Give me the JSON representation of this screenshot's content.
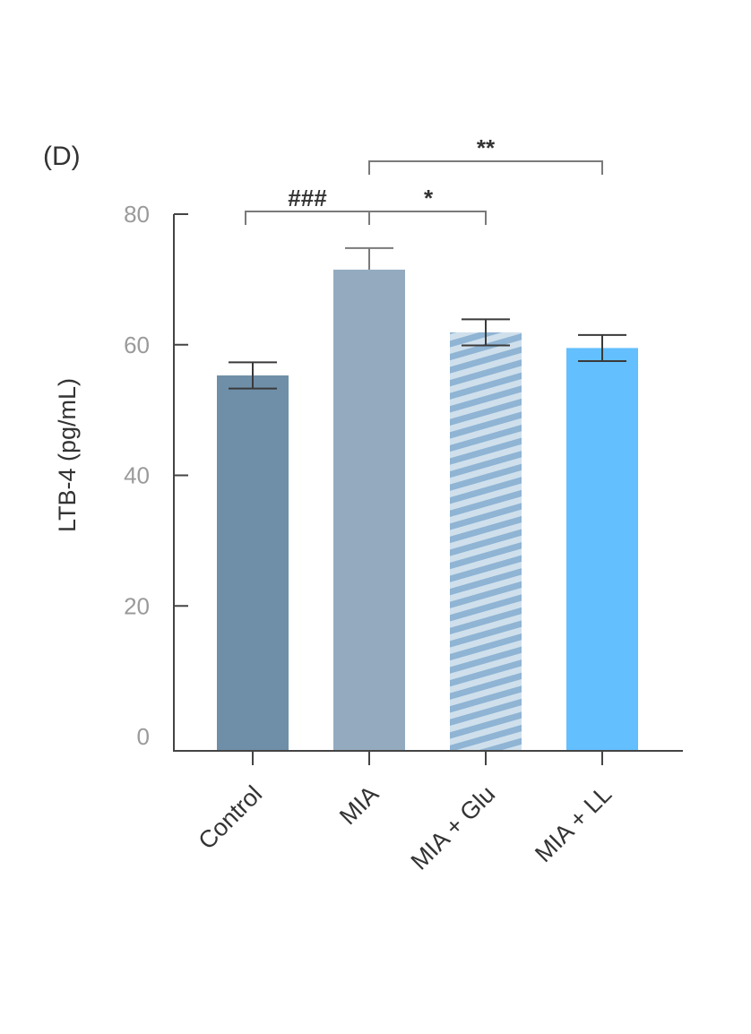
{
  "panel_label": "(D)",
  "chart_data": {
    "type": "bar",
    "title": "",
    "xlabel": "",
    "ylabel": "LTB-4 (pg/mL)",
    "ylim": [
      0,
      80
    ],
    "yticks": [
      0,
      20,
      40,
      60,
      80
    ],
    "ytick_labels": [
      "0",
      "20",
      "40",
      "60",
      "80"
    ],
    "grid": false,
    "legend": "none",
    "categories": [
      "Control",
      "MIA",
      "MIA + Glu",
      "MIA + LL"
    ],
    "values": [
      55.3,
      71.5,
      61.9,
      59.5
    ],
    "errors": [
      2.0,
      3.3,
      2.0,
      2.0
    ],
    "bar_colors": [
      "#6f8fa8",
      "#94abbf",
      "#8fb4d4",
      "#63bffe"
    ],
    "bar_patterns": [
      "solid",
      "solid",
      "diagonal-stripes",
      "solid"
    ],
    "stripe_colors": [
      "#cfe0ec",
      "#8fb4d4"
    ],
    "significance": [
      {
        "from": "Control",
        "to": "MIA",
        "label": "###",
        "level": 1
      },
      {
        "from": "MIA",
        "to": "MIA + Glu",
        "label": "*",
        "level": 1
      },
      {
        "from": "MIA",
        "to": "MIA + LL",
        "label": "**",
        "level": 2
      }
    ]
  }
}
